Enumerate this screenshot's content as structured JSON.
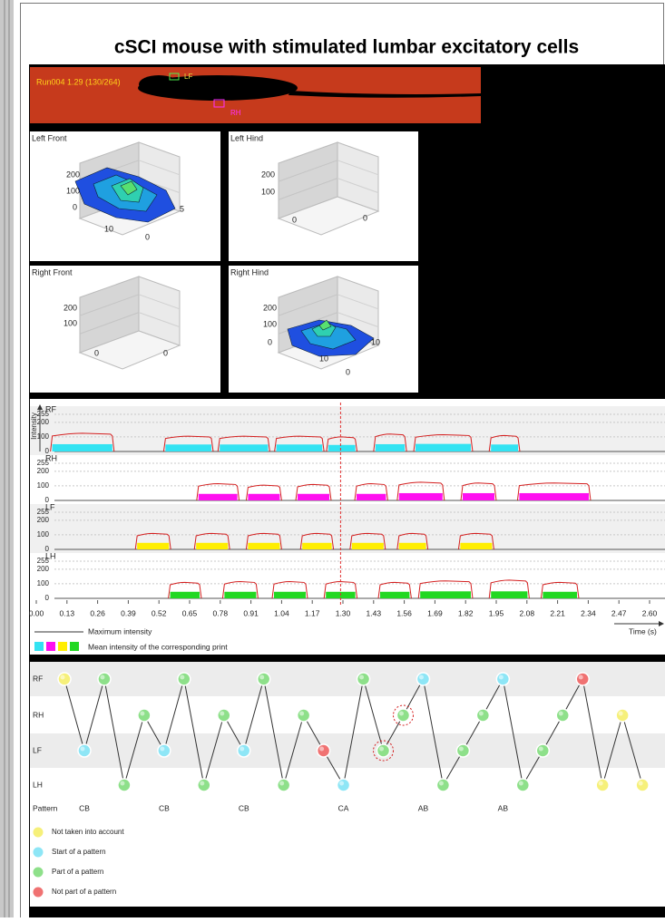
{
  "title": "cSCI mouse with stimulated lumbar excitatory cells",
  "run_label": "Run004 1.29 (130/264)",
  "paw_tags": [
    "LF",
    "RH"
  ],
  "panels": [
    {
      "title": "Left Front",
      "labels": [
        200,
        100,
        0,
        10,
        0,
        5
      ]
    },
    {
      "title": "Left Hind",
      "labels": [
        200,
        100,
        0,
        0
      ]
    },
    {
      "title": "Right Front",
      "labels": [
        200,
        100,
        0,
        0
      ]
    },
    {
      "title": "Right Hind",
      "labels": [
        200,
        100,
        0,
        10,
        0,
        10
      ]
    }
  ],
  "intensity": {
    "y_label": "Intensity",
    "x_label": "Time (s)",
    "ylim": [
      0,
      255
    ],
    "yticks": [
      0,
      100,
      200,
      255
    ],
    "xlim": [
      0,
      2.6
    ],
    "xticks": [
      {
        "value": 0,
        "label": "0.00"
      },
      {
        "value": 0.13,
        "label": "0.13"
      },
      {
        "value": 0.26,
        "label": "0.26"
      },
      {
        "value": 0.39,
        "label": "0.39"
      },
      {
        "value": 0.52,
        "label": "0.52"
      },
      {
        "value": 0.65,
        "label": "0.65"
      },
      {
        "value": 0.78,
        "label": "0.78"
      },
      {
        "value": 0.91,
        "label": "0.91"
      },
      {
        "value": 1.04,
        "label": "1.04"
      },
      {
        "value": 1.17,
        "label": "1.17"
      },
      {
        "value": 1.3,
        "label": "1.30"
      },
      {
        "value": 1.43,
        "label": "1.43"
      },
      {
        "value": 1.56,
        "label": "1.56"
      },
      {
        "value": 1.69,
        "label": "1.69"
      },
      {
        "value": 1.82,
        "label": "1.82"
      },
      {
        "value": 1.95,
        "label": "1.95"
      },
      {
        "value": 2.08,
        "label": "2.08"
      },
      {
        "value": 2.21,
        "label": "2.21"
      },
      {
        "value": 2.34,
        "label": "2.34"
      },
      {
        "value": 2.47,
        "label": "2.47"
      },
      {
        "value": 2.6,
        "label": "2.60"
      }
    ],
    "cursor": 1.29,
    "max_color": "#d42020",
    "legend": {
      "max_label": "Maximum intensity",
      "mean_label": "Mean intensity of the corresponding print"
    },
    "tracks": [
      {
        "name": "RF",
        "color": "#33e3f2",
        "prints": [
          {
            "start": 0.06,
            "end": 0.33,
            "max": 125,
            "mean": 50
          },
          {
            "start": 0.54,
            "end": 0.75,
            "max": 105,
            "mean": 48
          },
          {
            "start": 0.77,
            "end": 0.99,
            "max": 105,
            "mean": 48
          },
          {
            "start": 1.01,
            "end": 1.22,
            "max": 105,
            "mean": 48
          },
          {
            "start": 1.23,
            "end": 1.36,
            "max": 100,
            "mean": 45
          },
          {
            "start": 1.43,
            "end": 1.57,
            "max": 120,
            "mean": 50
          },
          {
            "start": 1.6,
            "end": 1.85,
            "max": 115,
            "mean": 52
          },
          {
            "start": 1.92,
            "end": 2.05,
            "max": 110,
            "mean": 48
          }
        ]
      },
      {
        "name": "RH",
        "color": "#ff10f0",
        "prints": [
          {
            "start": 0.68,
            "end": 0.86,
            "max": 115,
            "mean": 45
          },
          {
            "start": 0.89,
            "end": 1.04,
            "max": 105,
            "mean": 45
          },
          {
            "start": 1.1,
            "end": 1.25,
            "max": 110,
            "mean": 45
          },
          {
            "start": 1.35,
            "end": 1.49,
            "max": 115,
            "mean": 45
          },
          {
            "start": 1.53,
            "end": 1.73,
            "max": 125,
            "mean": 50
          },
          {
            "start": 1.8,
            "end": 1.95,
            "max": 120,
            "mean": 50
          },
          {
            "start": 2.04,
            "end": 2.35,
            "max": 120,
            "mean": 50
          }
        ]
      },
      {
        "name": "LF",
        "color": "#ffee00",
        "prints": [
          {
            "start": 0.42,
            "end": 0.57,
            "max": 110,
            "mean": 45
          },
          {
            "start": 0.67,
            "end": 0.82,
            "max": 110,
            "mean": 45
          },
          {
            "start": 0.89,
            "end": 1.04,
            "max": 110,
            "mean": 45
          },
          {
            "start": 1.12,
            "end": 1.26,
            "max": 110,
            "mean": 45
          },
          {
            "start": 1.33,
            "end": 1.48,
            "max": 110,
            "mean": 45
          },
          {
            "start": 1.53,
            "end": 1.66,
            "max": 110,
            "mean": 45
          },
          {
            "start": 1.79,
            "end": 1.94,
            "max": 110,
            "mean": 45
          }
        ]
      },
      {
        "name": "LH",
        "color": "#22d822",
        "prints": [
          {
            "start": 0.56,
            "end": 0.7,
            "max": 110,
            "mean": 45
          },
          {
            "start": 0.79,
            "end": 0.94,
            "max": 115,
            "mean": 45
          },
          {
            "start": 1.0,
            "end": 1.15,
            "max": 115,
            "mean": 45
          },
          {
            "start": 1.22,
            "end": 1.36,
            "max": 115,
            "mean": 45
          },
          {
            "start": 1.45,
            "end": 1.59,
            "max": 110,
            "mean": 45
          },
          {
            "start": 1.62,
            "end": 1.85,
            "max": 120,
            "mean": 48
          },
          {
            "start": 1.92,
            "end": 2.09,
            "max": 125,
            "mean": 48
          },
          {
            "start": 2.14,
            "end": 2.3,
            "max": 110,
            "mean": 45
          }
        ]
      }
    ]
  },
  "steps": {
    "rows": [
      "RF",
      "RH",
      "LF",
      "LH"
    ],
    "pattern_label": "Pattern",
    "circle_color": "#d42020",
    "legend": [
      {
        "label": "Not taken into account",
        "color": "#f6f07a"
      },
      {
        "label": "Start of a pattern",
        "color": "#8ee6f6"
      },
      {
        "label": "Part of a pattern",
        "color": "#8ee08a"
      },
      {
        "label": "Not part of a pattern",
        "color": "#f07272"
      }
    ],
    "nodes": [
      {
        "paw": "RF",
        "color": "#f6f07a"
      },
      {
        "paw": "LF",
        "color": "#8ee6f6",
        "pattern": "CB"
      },
      {
        "paw": "RF",
        "color": "#8ee08a"
      },
      {
        "paw": "LH",
        "color": "#8ee08a"
      },
      {
        "paw": "RH",
        "color": "#8ee08a"
      },
      {
        "paw": "LF",
        "color": "#8ee6f6",
        "pattern": "CB"
      },
      {
        "paw": "RF",
        "color": "#8ee08a"
      },
      {
        "paw": "LH",
        "color": "#8ee08a"
      },
      {
        "paw": "RH",
        "color": "#8ee08a"
      },
      {
        "paw": "LF",
        "color": "#8ee6f6",
        "pattern": "CB"
      },
      {
        "paw": "RF",
        "color": "#8ee08a"
      },
      {
        "paw": "LH",
        "color": "#8ee08a"
      },
      {
        "paw": "RH",
        "color": "#8ee08a"
      },
      {
        "paw": "LF",
        "color": "#f07272"
      },
      {
        "paw": "LH",
        "color": "#8ee6f6",
        "pattern": "CA"
      },
      {
        "paw": "RF",
        "color": "#8ee08a"
      },
      {
        "paw": "LF",
        "color": "#8ee08a",
        "circled": true
      },
      {
        "paw": "RH",
        "color": "#8ee08a",
        "circled": true
      },
      {
        "paw": "RF",
        "color": "#8ee6f6",
        "pattern": "AB"
      },
      {
        "paw": "LH",
        "color": "#8ee08a"
      },
      {
        "paw": "LF",
        "color": "#8ee08a"
      },
      {
        "paw": "RH",
        "color": "#8ee08a"
      },
      {
        "paw": "RF",
        "color": "#8ee6f6",
        "pattern": "AB"
      },
      {
        "paw": "LH",
        "color": "#8ee08a"
      },
      {
        "paw": "LF",
        "color": "#8ee08a"
      },
      {
        "paw": "RH",
        "color": "#8ee08a"
      },
      {
        "paw": "RF",
        "color": "#f07272"
      },
      {
        "paw": "LH",
        "color": "#f6f07a"
      },
      {
        "paw": "RH",
        "color": "#f6f07a"
      },
      {
        "paw": "LH",
        "color": "#f6f07a"
      }
    ]
  }
}
